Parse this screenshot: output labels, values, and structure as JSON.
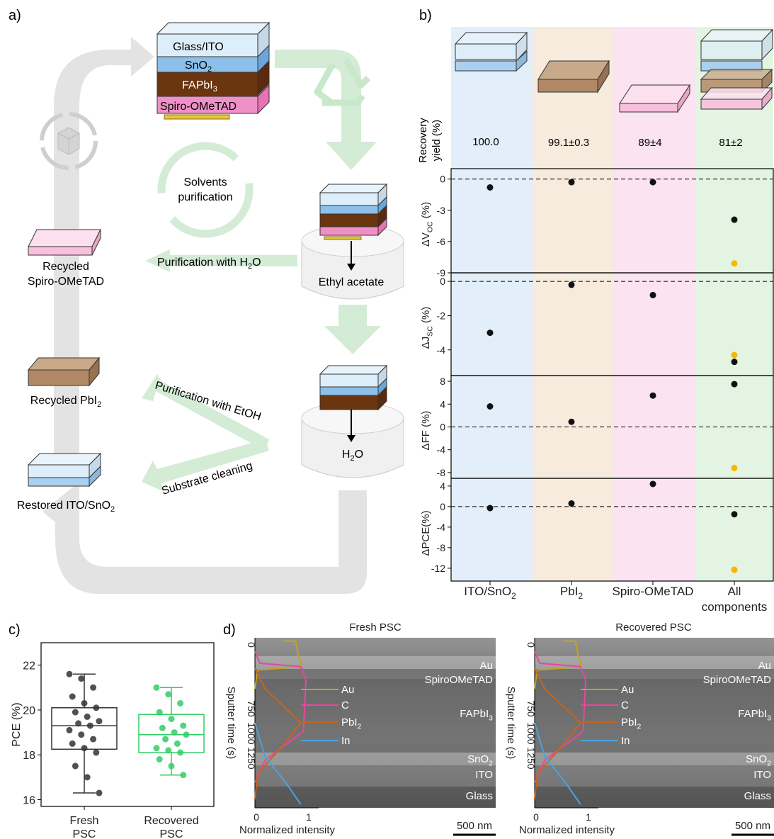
{
  "panel_labels": {
    "a": "a)",
    "b": "b)",
    "c": "c)",
    "d": "d)"
  },
  "panel_a": {
    "stack_labels": [
      "Glass/ITO",
      "SnO",
      "FAPbI",
      "Spiro-OMeTAD"
    ],
    "stack_subs": [
      "2",
      "3"
    ],
    "solvents": [
      "Solvents",
      "purification"
    ],
    "ethyl_acetate": "Ethyl acetate",
    "water": "H",
    "water_sub": "2",
    "water_tail": "O",
    "purif_h2o": "Purification with H",
    "purif_h2o_sub": "2",
    "purif_h2o_tail": "O",
    "purif_etoh": "Purification with EtOH",
    "substrate_cleaning": "Substrate cleaning",
    "recycled_spiro": [
      "Recycled",
      "Spiro-OMeTAD"
    ],
    "recycled_pbi": "Recycled PbI",
    "recycled_pbi_sub": "2",
    "restored": "Restored ITO/SnO",
    "restored_sub": "2"
  },
  "panel_b": {
    "recovery_label": [
      "Recovery",
      "yield (%)"
    ],
    "recovery_values": [
      "100.0",
      "99.1±0.3",
      "89±4",
      "81±2"
    ],
    "categories": [
      "ITO/SnO",
      "PbI",
      "Spiro-OMeTAD",
      "All"
    ],
    "category_subs": [
      "2",
      "2",
      "",
      ""
    ],
    "category_line2": [
      "",
      "",
      "",
      "components"
    ],
    "ylabels": [
      {
        "main": "ΔV",
        "sub": "OC",
        "tail": " (%)"
      },
      {
        "main": "ΔJ",
        "sub": "SC",
        "tail": " (%)"
      },
      {
        "main": "ΔFF",
        "sub": "",
        "tail": " (%)"
      },
      {
        "main": "ΔPCE",
        "sub": "",
        "tail": "(%)"
      }
    ],
    "column_colors": [
      "#e2eef9",
      "#f6ebdc",
      "#fbe3f1",
      "#e4f4e2"
    ]
  },
  "panel_d": {
    "titles": [
      "Fresh PSC",
      "Recovered PSC"
    ],
    "ylabel": "Sputter time (s)",
    "xlabel": "Normalized intensity",
    "xticks": [
      "0",
      "1"
    ],
    "yticks": [
      "0",
      "750",
      "1000",
      "1250"
    ],
    "layers": [
      "Au",
      "SpiroOMeTAD",
      "FAPbI",
      "SnO",
      "ITO",
      "Glass"
    ],
    "layer_subs": [
      "",
      "",
      "3",
      "2",
      "",
      ""
    ],
    "legend": [
      "Au",
      "C",
      "PbI",
      "In"
    ],
    "legend_subs": [
      "",
      "",
      "2",
      ""
    ],
    "legend_colors": [
      "#c8a21a",
      "#e8479c",
      "#c8641a",
      "#4aa3df"
    ],
    "scale_bar": "500 nm"
  },
  "chart_data": [
    {
      "type": "scatter",
      "panel": "b",
      "title": "",
      "categories": [
        "ITO/SnO2",
        "PbI2",
        "Spiro-OMeTAD",
        "All components"
      ],
      "recovery_yield": [
        "100.0",
        "99.1±0.3",
        "89±4",
        "81±2"
      ],
      "subplots": [
        {
          "ylabel": "ΔVOC (%)",
          "ylim": [
            -9,
            1
          ],
          "yticks": [
            0,
            -3,
            -6,
            -9
          ],
          "series": [
            {
              "color": "#111111",
              "values": [
                -0.8,
                -0.3,
                -0.3,
                -3.9
              ]
            },
            {
              "color": "#f5b800",
              "values": [
                null,
                null,
                null,
                -8.1
              ]
            }
          ]
        },
        {
          "ylabel": "ΔJSC (%)",
          "ylim": [
            -5.5,
            0.5
          ],
          "yticks": [
            0,
            -2,
            -4
          ],
          "series": [
            {
              "color": "#111111",
              "values": [
                -3.0,
                -0.2,
                -0.8,
                -4.7
              ]
            },
            {
              "color": "#f5b800",
              "values": [
                null,
                null,
                null,
                -4.3
              ]
            }
          ]
        },
        {
          "ylabel": "ΔFF (%)",
          "ylim": [
            -9,
            9
          ],
          "yticks": [
            8,
            4,
            0,
            -4,
            -8
          ],
          "series": [
            {
              "color": "#111111",
              "values": [
                3.6,
                0.9,
                5.5,
                7.5
              ]
            },
            {
              "color": "#f5b800",
              "values": [
                null,
                null,
                null,
                -7.2
              ]
            }
          ]
        },
        {
          "ylabel": "ΔPCE(%)",
          "ylim": [
            -14.5,
            5.5
          ],
          "yticks": [
            4,
            0,
            -4,
            -8,
            -12
          ],
          "series": [
            {
              "color": "#111111",
              "values": [
                -0.3,
                0.6,
                4.4,
                -1.5
              ]
            },
            {
              "color": "#f5b800",
              "values": [
                null,
                null,
                null,
                -12.3
              ]
            }
          ]
        }
      ],
      "reference_line": 0,
      "grid": false
    },
    {
      "type": "box",
      "panel": "c",
      "title": "",
      "ylabel": "PCE (%)",
      "categories": [
        "Fresh",
        "Recovered"
      ],
      "categories_line2": [
        "PSC",
        "PSC"
      ],
      "ylim": [
        15.7,
        23.0
      ],
      "yticks": [
        16,
        18,
        20,
        22
      ],
      "series": [
        {
          "name": "Fresh PSC",
          "color": "#333333",
          "box": {
            "min": 16.3,
            "q1": 18.25,
            "median": 19.3,
            "q3": 20.1,
            "max": 21.6
          },
          "points": [
            21.6,
            21.4,
            21.0,
            20.6,
            20.3,
            20.1,
            19.9,
            19.7,
            19.5,
            19.4,
            19.3,
            19.1,
            18.9,
            18.7,
            18.5,
            18.3,
            18.1,
            17.5,
            17.0,
            16.3
          ]
        },
        {
          "name": "Recovered PSC",
          "color": "#33cc66",
          "box": {
            "min": 17.1,
            "q1": 18.1,
            "median": 18.9,
            "q3": 19.8,
            "max": 21.0
          },
          "points": [
            21.0,
            20.7,
            20.3,
            19.9,
            19.6,
            19.3,
            19.2,
            19.0,
            18.9,
            18.7,
            18.5,
            18.3,
            18.2,
            18.1,
            17.8,
            17.5,
            17.1
          ]
        }
      ]
    }
  ]
}
